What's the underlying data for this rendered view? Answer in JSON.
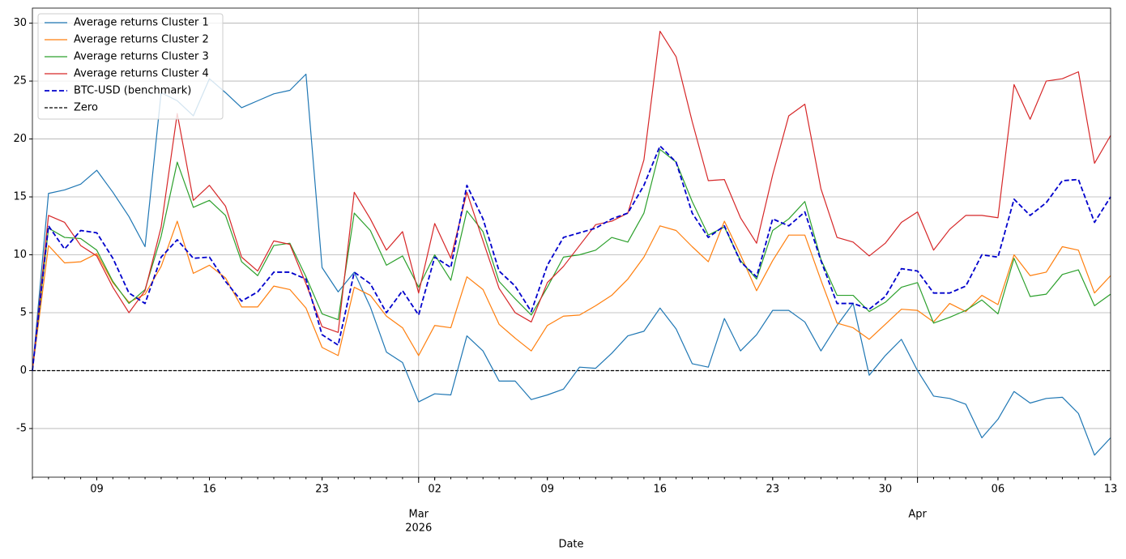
{
  "chart_data": {
    "type": "line",
    "x_label": "Date",
    "x": [
      "2026-02-05",
      "2026-02-06",
      "2026-02-07",
      "2026-02-08",
      "2026-02-09",
      "2026-02-10",
      "2026-02-11",
      "2026-02-12",
      "2026-02-13",
      "2026-02-14",
      "2026-02-15",
      "2026-02-16",
      "2026-02-17",
      "2026-02-18",
      "2026-02-19",
      "2026-02-20",
      "2026-02-21",
      "2026-02-22",
      "2026-02-23",
      "2026-02-24",
      "2026-02-25",
      "2026-02-26",
      "2026-02-27",
      "2026-02-28",
      "2026-03-01",
      "2026-03-02",
      "2026-03-03",
      "2026-03-04",
      "2026-03-05",
      "2026-03-06",
      "2026-03-07",
      "2026-03-08",
      "2026-03-09",
      "2026-03-10",
      "2026-03-11",
      "2026-03-12",
      "2026-03-13",
      "2026-03-14",
      "2026-03-15",
      "2026-03-16",
      "2026-03-17",
      "2026-03-18",
      "2026-03-19",
      "2026-03-20",
      "2026-03-21",
      "2026-03-22",
      "2026-03-23",
      "2026-03-24",
      "2026-03-25",
      "2026-03-26",
      "2026-03-27",
      "2026-03-28",
      "2026-03-29",
      "2026-03-30",
      "2026-03-31",
      "2026-04-01",
      "2026-04-02",
      "2026-04-03",
      "2026-04-04",
      "2026-04-05",
      "2026-04-06",
      "2026-04-07",
      "2026-04-08",
      "2026-04-09",
      "2026-04-10",
      "2026-04-11",
      "2026-04-12",
      "2026-04-13"
    ],
    "series": [
      {
        "name": "Average returns Cluster 1",
        "color": "#1f77b4",
        "dash": false,
        "values": [
          0,
          15.3,
          15.6,
          16.1,
          17.3,
          15.4,
          13.3,
          10.7,
          24.0,
          23.3,
          22.0,
          25.2,
          24.0,
          22.7,
          23.3,
          23.9,
          24.2,
          25.6,
          8.9,
          6.8,
          8.5,
          5.5,
          1.6,
          0.7,
          -2.7,
          -2.0,
          -2.1,
          3.0,
          1.7,
          -0.9,
          -0.9,
          -2.5,
          -2.1,
          -1.6,
          0.3,
          0.2,
          1.5,
          3.0,
          3.4,
          5.4,
          3.6,
          0.6,
          0.3,
          4.5,
          1.7,
          3.1,
          5.2,
          5.2,
          4.2,
          1.7,
          3.9,
          5.8,
          -0.4,
          1.3,
          2.7,
          0.0,
          -2.2,
          -2.4,
          -2.9,
          -5.8,
          -4.2,
          -1.8,
          -2.8,
          -2.4,
          -2.3,
          -3.7,
          -7.3,
          -5.8
        ]
      },
      {
        "name": "Average returns Cluster 2",
        "color": "#ff7f0e",
        "dash": false,
        "values": [
          0,
          10.8,
          9.3,
          9.4,
          10.1,
          7.6,
          5.9,
          6.6,
          9.0,
          12.9,
          8.4,
          9.1,
          8.0,
          5.5,
          5.5,
          7.3,
          7.0,
          5.4,
          2.0,
          1.3,
          7.2,
          6.5,
          4.7,
          3.7,
          1.3,
          3.9,
          3.7,
          8.1,
          7.0,
          4.0,
          2.8,
          1.7,
          3.9,
          4.7,
          4.8,
          5.6,
          6.5,
          7.9,
          9.8,
          12.5,
          12.1,
          10.7,
          9.4,
          12.9,
          10.0,
          6.9,
          9.5,
          11.7,
          11.7,
          7.8,
          4.1,
          3.7,
          2.7,
          4.0,
          5.3,
          5.2,
          4.2,
          5.8,
          5.1,
          6.5,
          5.7,
          10.0,
          8.2,
          8.5,
          10.7,
          10.4,
          6.7,
          8.2
        ]
      },
      {
        "name": "Average returns Cluster 3",
        "color": "#2ca02c",
        "dash": false,
        "values": [
          0,
          12.3,
          11.5,
          11.4,
          10.4,
          7.7,
          5.8,
          7.0,
          11.6,
          18.0,
          14.1,
          14.7,
          13.4,
          9.4,
          8.2,
          10.8,
          11.0,
          8.1,
          4.9,
          4.4,
          13.6,
          12.1,
          9.1,
          9.9,
          7.2,
          10.0,
          7.8,
          13.8,
          12.0,
          7.7,
          6.2,
          4.8,
          7.2,
          9.8,
          10.0,
          10.4,
          11.5,
          11.1,
          13.6,
          19.1,
          18.0,
          14.6,
          11.7,
          12.4,
          9.5,
          7.9,
          12.1,
          13.1,
          14.6,
          9.6,
          6.5,
          6.5,
          5.1,
          5.9,
          7.2,
          7.6,
          4.1,
          4.6,
          5.2,
          6.1,
          4.9,
          9.7,
          6.4,
          6.6,
          8.3,
          8.7,
          5.6,
          6.6
        ]
      },
      {
        "name": "Average returns Cluster 4",
        "color": "#d62728",
        "dash": false,
        "values": [
          0,
          13.4,
          12.8,
          10.8,
          9.9,
          7.2,
          5.0,
          6.9,
          12.4,
          22.2,
          14.7,
          16.0,
          14.2,
          9.8,
          8.6,
          11.2,
          10.9,
          7.5,
          3.8,
          3.3,
          15.4,
          13.1,
          10.4,
          12.0,
          6.7,
          12.7,
          9.7,
          15.4,
          11.2,
          7.1,
          5.0,
          4.2,
          7.6,
          9.0,
          10.8,
          12.6,
          12.9,
          13.6,
          18.2,
          29.3,
          27.1,
          21.5,
          16.4,
          16.5,
          13.2,
          11.0,
          16.9,
          22.0,
          23.0,
          15.7,
          11.5,
          11.1,
          9.9,
          11.0,
          12.8,
          13.7,
          10.4,
          12.2,
          13.4,
          13.4,
          13.2,
          24.7,
          21.7,
          25.0,
          25.2,
          25.8,
          17.9,
          20.3
        ]
      },
      {
        "name": "BTC-USD (benchmark)",
        "color": "#0000cc",
        "dash": true,
        "values": [
          0,
          12.5,
          10.5,
          12.1,
          11.9,
          9.7,
          6.7,
          5.8,
          9.8,
          11.3,
          9.7,
          9.8,
          7.7,
          6.0,
          6.8,
          8.5,
          8.5,
          7.9,
          3.1,
          2.2,
          8.5,
          7.5,
          5.0,
          6.9,
          4.8,
          9.8,
          8.9,
          16.0,
          13.1,
          8.6,
          7.3,
          5.1,
          9.1,
          11.5,
          11.9,
          12.3,
          13.1,
          13.6,
          16.0,
          19.4,
          18.0,
          13.6,
          11.5,
          12.5,
          9.4,
          8.1,
          13.1,
          12.5,
          13.7,
          9.5,
          5.8,
          5.8,
          5.3,
          6.4,
          8.8,
          8.6,
          6.7,
          6.7,
          7.3,
          10.0,
          9.8,
          14.8,
          13.4,
          14.5,
          16.4,
          16.5,
          12.8,
          15.0
        ]
      }
    ],
    "hlines": [
      {
        "name": "Zero",
        "value": 0,
        "color": "#000000"
      }
    ],
    "xlim": [
      "2026-02-05",
      "2026-04-13"
    ],
    "xticks": [
      {
        "value": "2026-02-09",
        "label": "09"
      },
      {
        "value": "2026-02-16",
        "label": "16"
      },
      {
        "value": "2026-02-23",
        "label": "23"
      },
      {
        "value": "2026-03-02",
        "label": "02"
      },
      {
        "value": "2026-03-09",
        "label": "09"
      },
      {
        "value": "2026-03-16",
        "label": "16"
      },
      {
        "value": "2026-03-23",
        "label": "23"
      },
      {
        "value": "2026-03-30",
        "label": "30"
      },
      {
        "value": "2026-04-06",
        "label": "06"
      },
      {
        "value": "2026-04-13",
        "label": "13"
      }
    ],
    "xticks_major": [
      {
        "value": "2026-03-01",
        "label": "Mar",
        "sublabel": "2026"
      },
      {
        "value": "2026-04-01",
        "label": "Apr"
      }
    ],
    "ylim": [
      -9.2,
      31.3
    ],
    "yticks": [
      -5,
      0,
      5,
      10,
      15,
      20,
      25,
      30
    ],
    "grid": true,
    "legend": "upper left"
  }
}
